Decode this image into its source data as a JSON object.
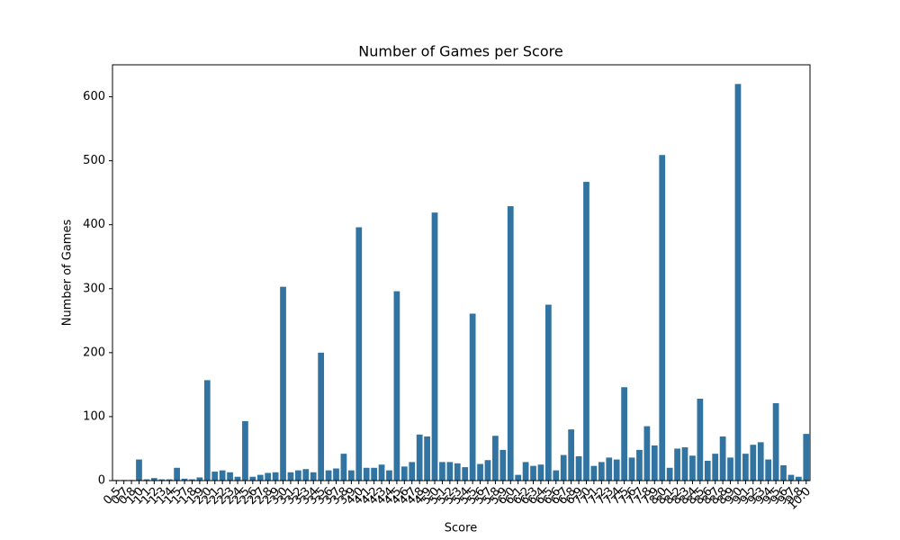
{
  "chart_data": {
    "type": "bar",
    "title": "Number of Games per Score",
    "x_label": "Score",
    "y_label": "Number of Games",
    "categories": [
      "0.5",
      "0.7",
      "0.8",
      "1.0",
      "1.1",
      "1.2",
      "1.3",
      "1.4",
      "1.5",
      "1.7",
      "1.8",
      "1.9",
      "2.0",
      "2.1",
      "2.2",
      "2.3",
      "2.4",
      "2.5",
      "2.6",
      "2.7",
      "2.8",
      "2.9",
      "3.0",
      "3.1",
      "3.2",
      "3.3",
      "3.4",
      "3.5",
      "3.6",
      "3.7",
      "3.8",
      "3.9",
      "4.0",
      "4.1",
      "4.2",
      "4.3",
      "4.4",
      "4.5",
      "4.6",
      "4.7",
      "4.8",
      "4.9",
      "5.0",
      "5.1",
      "5.2",
      "5.3",
      "5.4",
      "5.5",
      "5.6",
      "5.7",
      "5.8",
      "5.9",
      "6.0",
      "6.1",
      "6.2",
      "6.3",
      "6.4",
      "6.5",
      "6.6",
      "6.7",
      "6.8",
      "6.9",
      "7.0",
      "7.1",
      "7.2",
      "7.3",
      "7.4",
      "7.5",
      "7.6",
      "7.7",
      "7.8",
      "7.9",
      "8.0",
      "8.1",
      "8.2",
      "8.3",
      "8.4",
      "8.5",
      "8.6",
      "8.7",
      "8.8",
      "8.9",
      "9.0",
      "9.1",
      "9.2",
      "9.3",
      "9.4",
      "9.5",
      "9.6",
      "9.7",
      "9.8",
      "10.0"
    ],
    "values": [
      1,
      1,
      1,
      33,
      2,
      4,
      2,
      2,
      20,
      3,
      2,
      5,
      157,
      14,
      16,
      13,
      6,
      93,
      6,
      9,
      12,
      13,
      303,
      13,
      16,
      18,
      13,
      200,
      16,
      19,
      42,
      16,
      396,
      20,
      20,
      25,
      16,
      296,
      22,
      29,
      72,
      69,
      419,
      29,
      29,
      27,
      21,
      261,
      26,
      32,
      70,
      48,
      429,
      9,
      29,
      23,
      25,
      275,
      16,
      40,
      80,
      38,
      467,
      23,
      29,
      36,
      33,
      146,
      36,
      48,
      85,
      55,
      509,
      20,
      50,
      52,
      39,
      128,
      31,
      42,
      69,
      36,
      620,
      42,
      56,
      60,
      33,
      121,
      24,
      9,
      6,
      73
    ],
    "color": "#3274a1",
    "ylim": [
      0,
      650
    ],
    "yticks": [
      0,
      100,
      200,
      300,
      400,
      500,
      600
    ]
  }
}
